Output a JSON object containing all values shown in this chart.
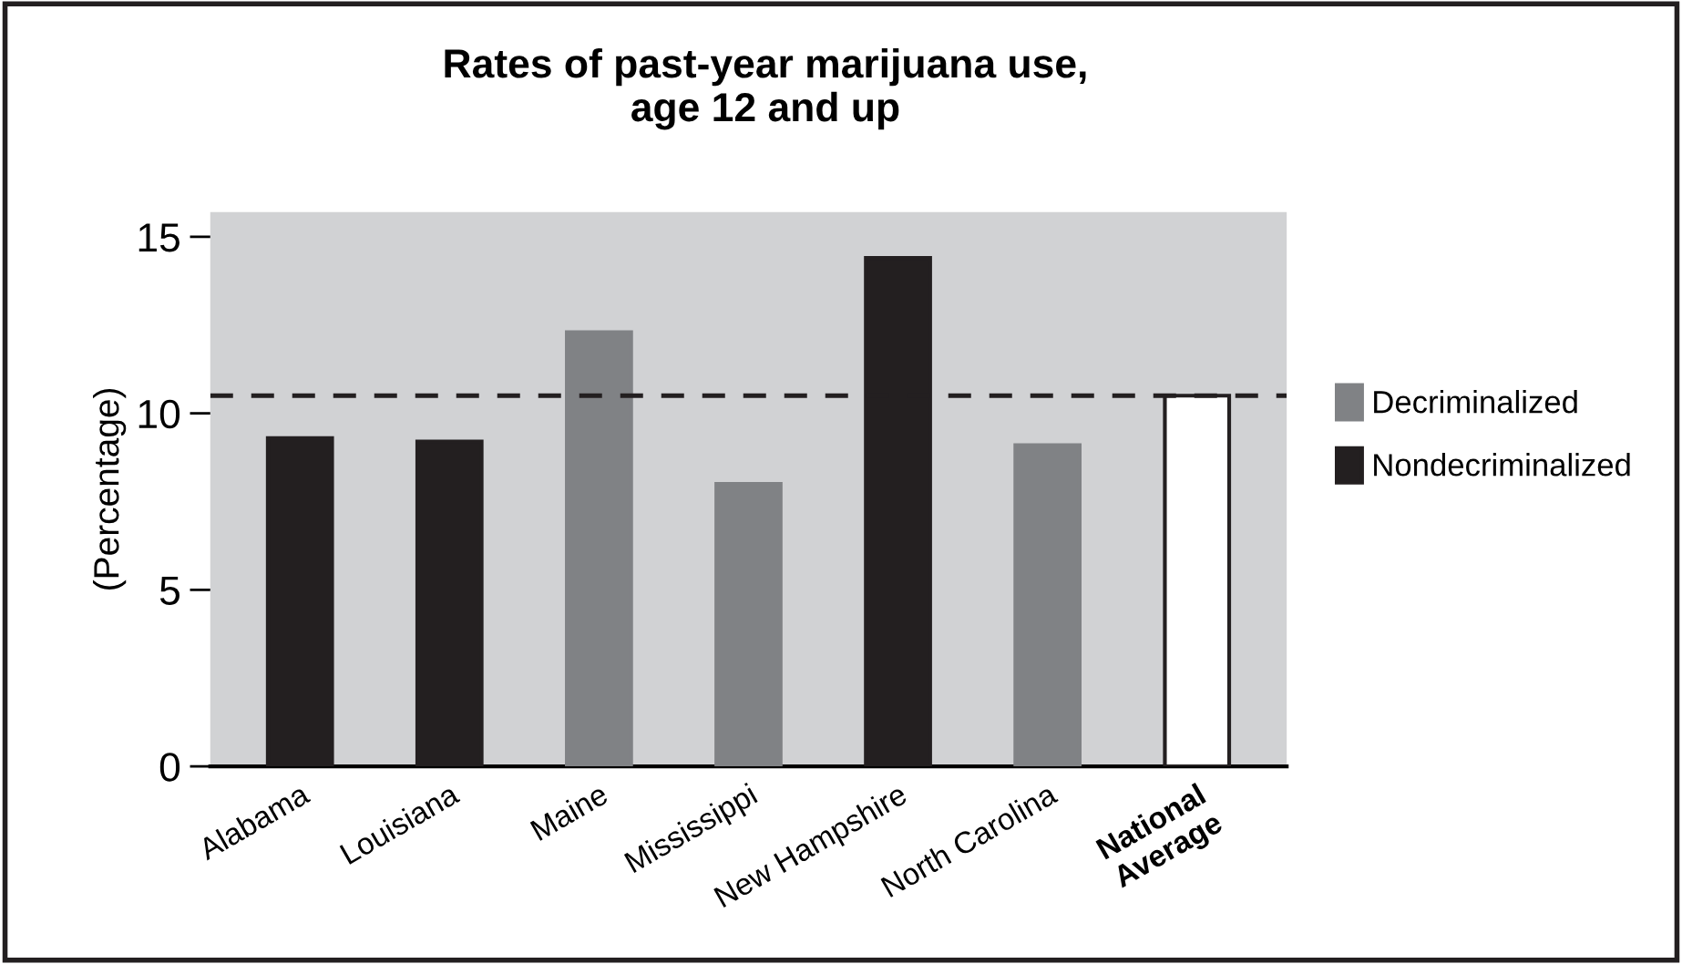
{
  "chart_data": {
    "type": "bar",
    "title": "Rates of past-year marijuana use,\nage 12 and up",
    "ylabel": "(Percentage)",
    "categories": [
      "Alabama",
      "Louisiana",
      "Maine",
      "Mississippi",
      "New Hampshire",
      "North Carolina",
      "National\nAverage"
    ],
    "series": [
      {
        "name": "Decriminalized",
        "color": "#808285",
        "values": [
          null,
          null,
          12.3,
          8.0,
          null,
          9.1,
          null
        ]
      },
      {
        "name": "Nondecriminalized",
        "color": "#231f20",
        "values": [
          9.3,
          9.2,
          null,
          null,
          14.4,
          null,
          null
        ]
      },
      {
        "color": "#ffffff",
        "values": [
          null,
          null,
          null,
          null,
          null,
          null,
          10.5
        ]
      }
    ],
    "ylim": [
      0,
      15.7
    ],
    "yticks": [
      0,
      5,
      10,
      15
    ],
    "grid": false,
    "legend": "right",
    "ref_lines": [
      {
        "axis": "y",
        "value": 10.5,
        "color": "#231f20",
        "line_style": "dashed"
      }
    ]
  }
}
